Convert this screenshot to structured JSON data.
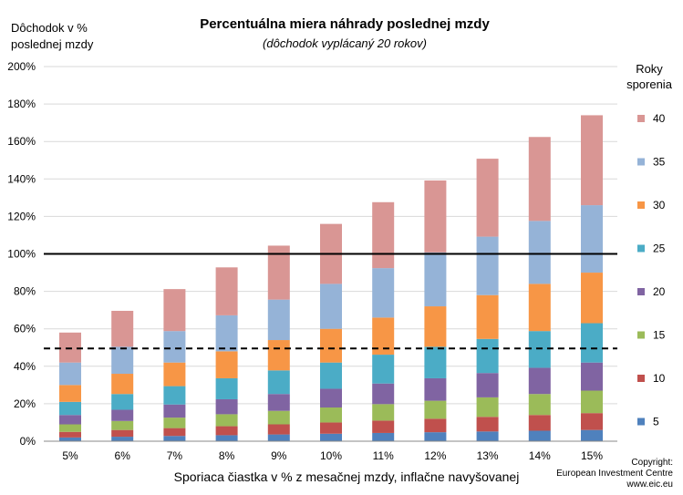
{
  "chart_data": {
    "type": "bar",
    "stacked": true,
    "title": "Percentuálna miera náhrady poslednej mzdy",
    "subtitle": "(dôchodok vyplácaný 20 rokov)",
    "ylabel_lines": [
      "Dôchodok  v  %",
      "poslednej mzdy"
    ],
    "xlabel": "Sporiaca čiastka v % z mesačnej mzdy, inflačne navyšovanej",
    "legend_title_lines": [
      "Roky",
      "sporenia"
    ],
    "legend_placement": "right",
    "ylim": [
      0,
      200
    ],
    "ytick_labels": [
      "0%",
      "20%",
      "40%",
      "60%",
      "80%",
      "100%",
      "120%",
      "140%",
      "160%",
      "180%",
      "200%"
    ],
    "categories": [
      "5%",
      "6%",
      "7%",
      "8%",
      "9%",
      "10%",
      "11%",
      "12%",
      "13%",
      "14%",
      "15%"
    ],
    "reference_lines": [
      {
        "value": 100,
        "style": "solid"
      },
      {
        "value": 49.5,
        "style": "dashed"
      }
    ],
    "series": [
      {
        "name": "5",
        "color": "#4f81bd",
        "values": [
          2,
          2.4,
          2.8,
          3.2,
          3.6,
          4,
          4.4,
          4.8,
          5.2,
          5.6,
          6
        ]
      },
      {
        "name": "10",
        "color": "#c0504d",
        "values": [
          3,
          3.6,
          4.2,
          4.8,
          5.4,
          6,
          6.6,
          7.2,
          7.8,
          8.4,
          9
        ]
      },
      {
        "name": "15",
        "color": "#9bbb59",
        "values": [
          4,
          4.8,
          5.6,
          6.4,
          7.2,
          8,
          8.8,
          9.6,
          10.4,
          11.2,
          12
        ]
      },
      {
        "name": "20",
        "color": "#8064a2",
        "values": [
          5,
          6,
          7,
          8,
          9,
          10,
          11,
          12,
          13,
          14,
          15
        ]
      },
      {
        "name": "25",
        "color": "#4bacc6",
        "values": [
          7,
          8.4,
          9.8,
          11.2,
          12.6,
          14,
          15.4,
          16.8,
          18.2,
          19.6,
          21
        ]
      },
      {
        "name": "30",
        "color": "#f79646",
        "values": [
          9,
          10.8,
          12.6,
          14.4,
          16.2,
          18,
          19.8,
          21.6,
          23.4,
          25.2,
          27
        ]
      },
      {
        "name": "35",
        "color": "#95b3d7",
        "values": [
          12,
          14.4,
          16.8,
          19.2,
          21.6,
          24,
          26.4,
          28.8,
          31.2,
          33.6,
          36
        ]
      },
      {
        "name": "40",
        "color": "#d99694",
        "values": [
          16,
          19.2,
          22.4,
          25.6,
          28.8,
          32,
          35.2,
          38.4,
          41.6,
          44.8,
          48
        ]
      }
    ]
  },
  "copyright_lines": [
    "Copyright:",
    "European Investment Centre",
    "www.eic.eu"
  ]
}
